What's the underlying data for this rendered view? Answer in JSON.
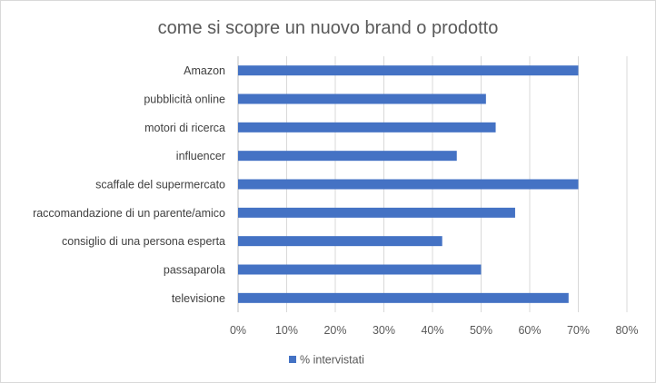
{
  "chart_data": {
    "type": "bar",
    "orientation": "horizontal",
    "title": "come si scopre un nuovo brand o prodotto",
    "categories": [
      "Amazon",
      "pubblicità online",
      "motori di ricerca",
      "influencer",
      "scaffale del supermercato",
      "raccomandazione di un parente/amico",
      "consiglio di una persona esperta",
      "passaparola",
      "televisione"
    ],
    "series": [
      {
        "name": "% intervistati",
        "values": [
          70,
          51,
          53,
          45,
          70,
          57,
          42,
          50,
          68
        ],
        "color": "#4472c4"
      }
    ],
    "xlim": [
      0,
      80
    ],
    "xticks": [
      "0%",
      "10%",
      "20%",
      "30%",
      "40%",
      "50%",
      "60%",
      "70%",
      "80%"
    ],
    "grid": true,
    "legend": "bottom-left"
  }
}
